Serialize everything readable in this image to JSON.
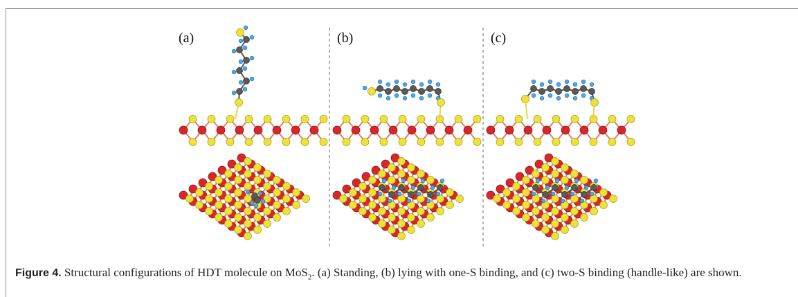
{
  "panels": [
    {
      "label": "(a)"
    },
    {
      "label": "(b)"
    },
    {
      "label": "(c)"
    }
  ],
  "caption": {
    "label": "Figure 4.",
    "text_before": " Structural configurations of HDT molecule on MoS",
    "subscript": "2",
    "text_after": ". (a) Standing, (b) lying with one-S binding, and (c) two-S binding (handle-like) are shown."
  }
}
